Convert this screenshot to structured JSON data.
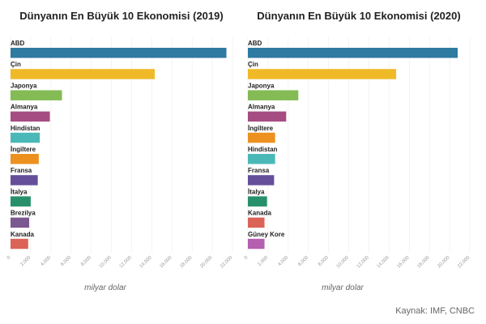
{
  "source": "Kaynak: IMF, CNBC",
  "chart_data": [
    {
      "type": "bar",
      "orientation": "horizontal",
      "title": "Dünyanın En Büyük 10 Ekonomisi (2019)",
      "xlabel": "milyar dolar",
      "ylabel": "",
      "xlim": [
        0,
        22000
      ],
      "xticks": [
        "0",
        "2,000",
        "4,000",
        "6,000",
        "8,000",
        "10,000",
        "12,000",
        "14,000",
        "16,000",
        "18,000",
        "20,000",
        "22,000"
      ],
      "grid": true,
      "categories": [
        "ABD",
        "Çin",
        "Japonya",
        "Almanya",
        "Hindistan",
        "İngiltere",
        "Fransa",
        "İtalya",
        "Brezilya",
        "Kanada"
      ],
      "values": [
        21400,
        14300,
        5100,
        3900,
        2900,
        2800,
        2700,
        2000,
        1850,
        1750
      ],
      "colors": [
        "#2e7aa0",
        "#f0b928",
        "#84bb55",
        "#a54d82",
        "#4bb8b8",
        "#ec9120",
        "#654f9a",
        "#27906a",
        "#7a5990",
        "#dc6357"
      ]
    },
    {
      "type": "bar",
      "orientation": "horizontal",
      "title": "Dünyanın En Büyük 10 Ekonomisi (2020)",
      "xlabel": "milyar dolar",
      "ylabel": "",
      "xlim": [
        0,
        22000
      ],
      "xticks": [
        "0",
        "2,000",
        "4,000",
        "6,000",
        "8,000",
        "10,000",
        "12,000",
        "14,000",
        "16,000",
        "18,000",
        "20,000",
        "22,000"
      ],
      "grid": true,
      "categories": [
        "ABD",
        "Çin",
        "Japonya",
        "Almanya",
        "İngiltere",
        "Hindistan",
        "Fransa",
        "İtalya",
        "Kanada",
        "Güney Kore"
      ],
      "values": [
        20800,
        14700,
        5000,
        3800,
        2700,
        2700,
        2600,
        1900,
        1650,
        1650
      ],
      "colors": [
        "#2e7aa0",
        "#f0b928",
        "#84bb55",
        "#a54d82",
        "#ec9120",
        "#4bb8b8",
        "#654f9a",
        "#27906a",
        "#dc6357",
        "#b55fb0"
      ]
    }
  ]
}
